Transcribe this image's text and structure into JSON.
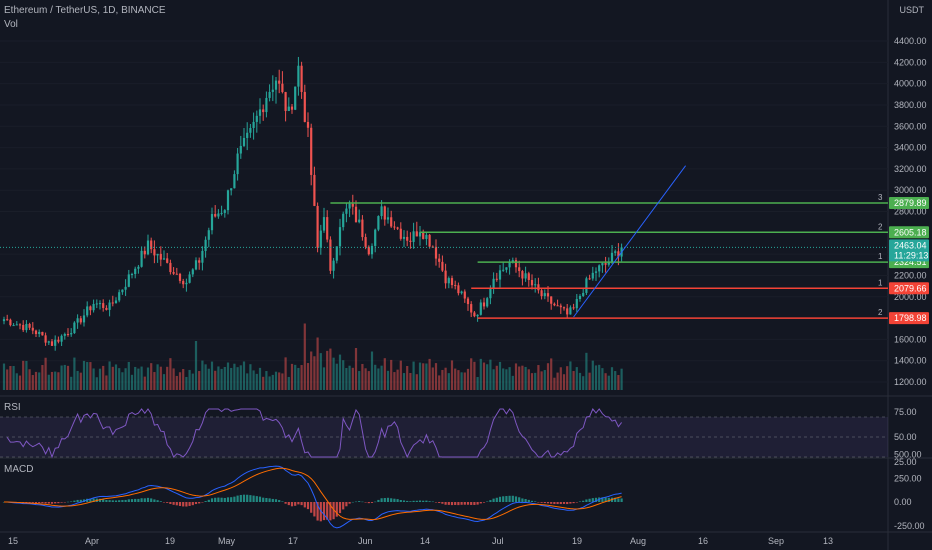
{
  "header": {
    "symbol": "Ethereum / TetherUS, 1D, BINANCE",
    "volume_label": "Vol",
    "currency": "USDT"
  },
  "colors": {
    "background": "#131722",
    "grid": "#1e222d",
    "up": "#26a69a",
    "down": "#ef5350",
    "level_up": "#4caf50",
    "level_down": "#f44336",
    "trend": "#2962ff",
    "rsi_line": "#7e57c2",
    "macd_line": "#2962ff",
    "signal_line": "#ff6d00",
    "current_price": "#26a69a"
  },
  "price_axis": {
    "ticks": [
      "4400.00",
      "4200.00",
      "4000.00",
      "3800.00",
      "3600.00",
      "3400.00",
      "3200.00",
      "3000.00",
      "2800.00",
      "2400.00",
      "2200.00",
      "2000.00",
      "1600.00",
      "1400.00",
      "1200.00"
    ]
  },
  "current_price": {
    "value": 2463.04,
    "label": "2463.04",
    "countdown": "11:29:13"
  },
  "levels": [
    {
      "price": 2879.89,
      "label": "2879.89",
      "marker": "3",
      "type": "up"
    },
    {
      "price": 2605.18,
      "label": "2605.18",
      "marker": "2",
      "type": "up"
    },
    {
      "price": 2324.51,
      "label": "2324.51",
      "marker": "1",
      "type": "up"
    },
    {
      "price": 2079.66,
      "label": "2079.66",
      "marker": "1",
      "type": "down"
    },
    {
      "price": 1798.98,
      "label": "1798.98",
      "marker": "2",
      "type": "down"
    }
  ],
  "rsi": {
    "label": "RSI",
    "ticks": [
      "75.00",
      "50.00",
      "25.00"
    ],
    "overbought": 70,
    "oversold": 30,
    "last_value": 68
  },
  "macd": {
    "label": "MACD",
    "ticks": [
      "500.00",
      "250.00",
      "0.00",
      "-250.00"
    ]
  },
  "time_axis": [
    "15",
    "Apr",
    "19",
    "May",
    "17",
    "Jun",
    "14",
    "Jul",
    "19",
    "Aug",
    "16",
    "Sep",
    "13"
  ],
  "chart_data": {
    "type": "candlestick",
    "title": "Ethereum / TetherUS, 1D, BINANCE",
    "ylabel": "USDT",
    "ylim": [
      1100,
      4450
    ],
    "anchors": [
      [
        0,
        1790
      ],
      [
        9,
        1690
      ],
      [
        15,
        1560
      ],
      [
        22,
        1720
      ],
      [
        28,
        1940
      ],
      [
        33,
        1900
      ],
      [
        38,
        2130
      ],
      [
        45,
        2480
      ],
      [
        51,
        2300
      ],
      [
        57,
        2140
      ],
      [
        61,
        2340
      ],
      [
        65,
        2730
      ],
      [
        69,
        2850
      ],
      [
        73,
        3300
      ],
      [
        77,
        3520
      ],
      [
        82,
        3900
      ],
      [
        85,
        4050
      ],
      [
        89,
        3700
      ],
      [
        92,
        4150
      ],
      [
        95,
        3500
      ],
      [
        98,
        2450
      ],
      [
        100,
        2800
      ],
      [
        102,
        2200
      ],
      [
        105,
        2700
      ],
      [
        108,
        2850
      ],
      [
        111,
        2680
      ],
      [
        114,
        2450
      ],
      [
        118,
        2800
      ],
      [
        121,
        2720
      ],
      [
        124,
        2600
      ],
      [
        127,
        2540
      ],
      [
        130,
        2650
      ],
      [
        134,
        2480
      ],
      [
        138,
        2180
      ],
      [
        142,
        2050
      ],
      [
        147,
        1830
      ],
      [
        150,
        1950
      ],
      [
        153,
        2190
      ],
      [
        156,
        2260
      ],
      [
        158,
        2320
      ],
      [
        161,
        2250
      ],
      [
        164,
        2140
      ],
      [
        168,
        2010
      ],
      [
        172,
        1920
      ],
      [
        176,
        1830
      ],
      [
        178,
        1880
      ],
      [
        181,
        2080
      ],
      [
        185,
        2250
      ],
      [
        188,
        2300
      ],
      [
        191,
        2400
      ],
      [
        193,
        2463
      ]
    ],
    "volume_peaks": [
      [
        94,
        0.95
      ],
      [
        98,
        0.75
      ],
      [
        96,
        0.55
      ],
      [
        60,
        0.7
      ],
      [
        115,
        0.55
      ],
      [
        110,
        0.6
      ]
    ],
    "level_start_bars": [
      102,
      130,
      148,
      146,
      148
    ]
  }
}
